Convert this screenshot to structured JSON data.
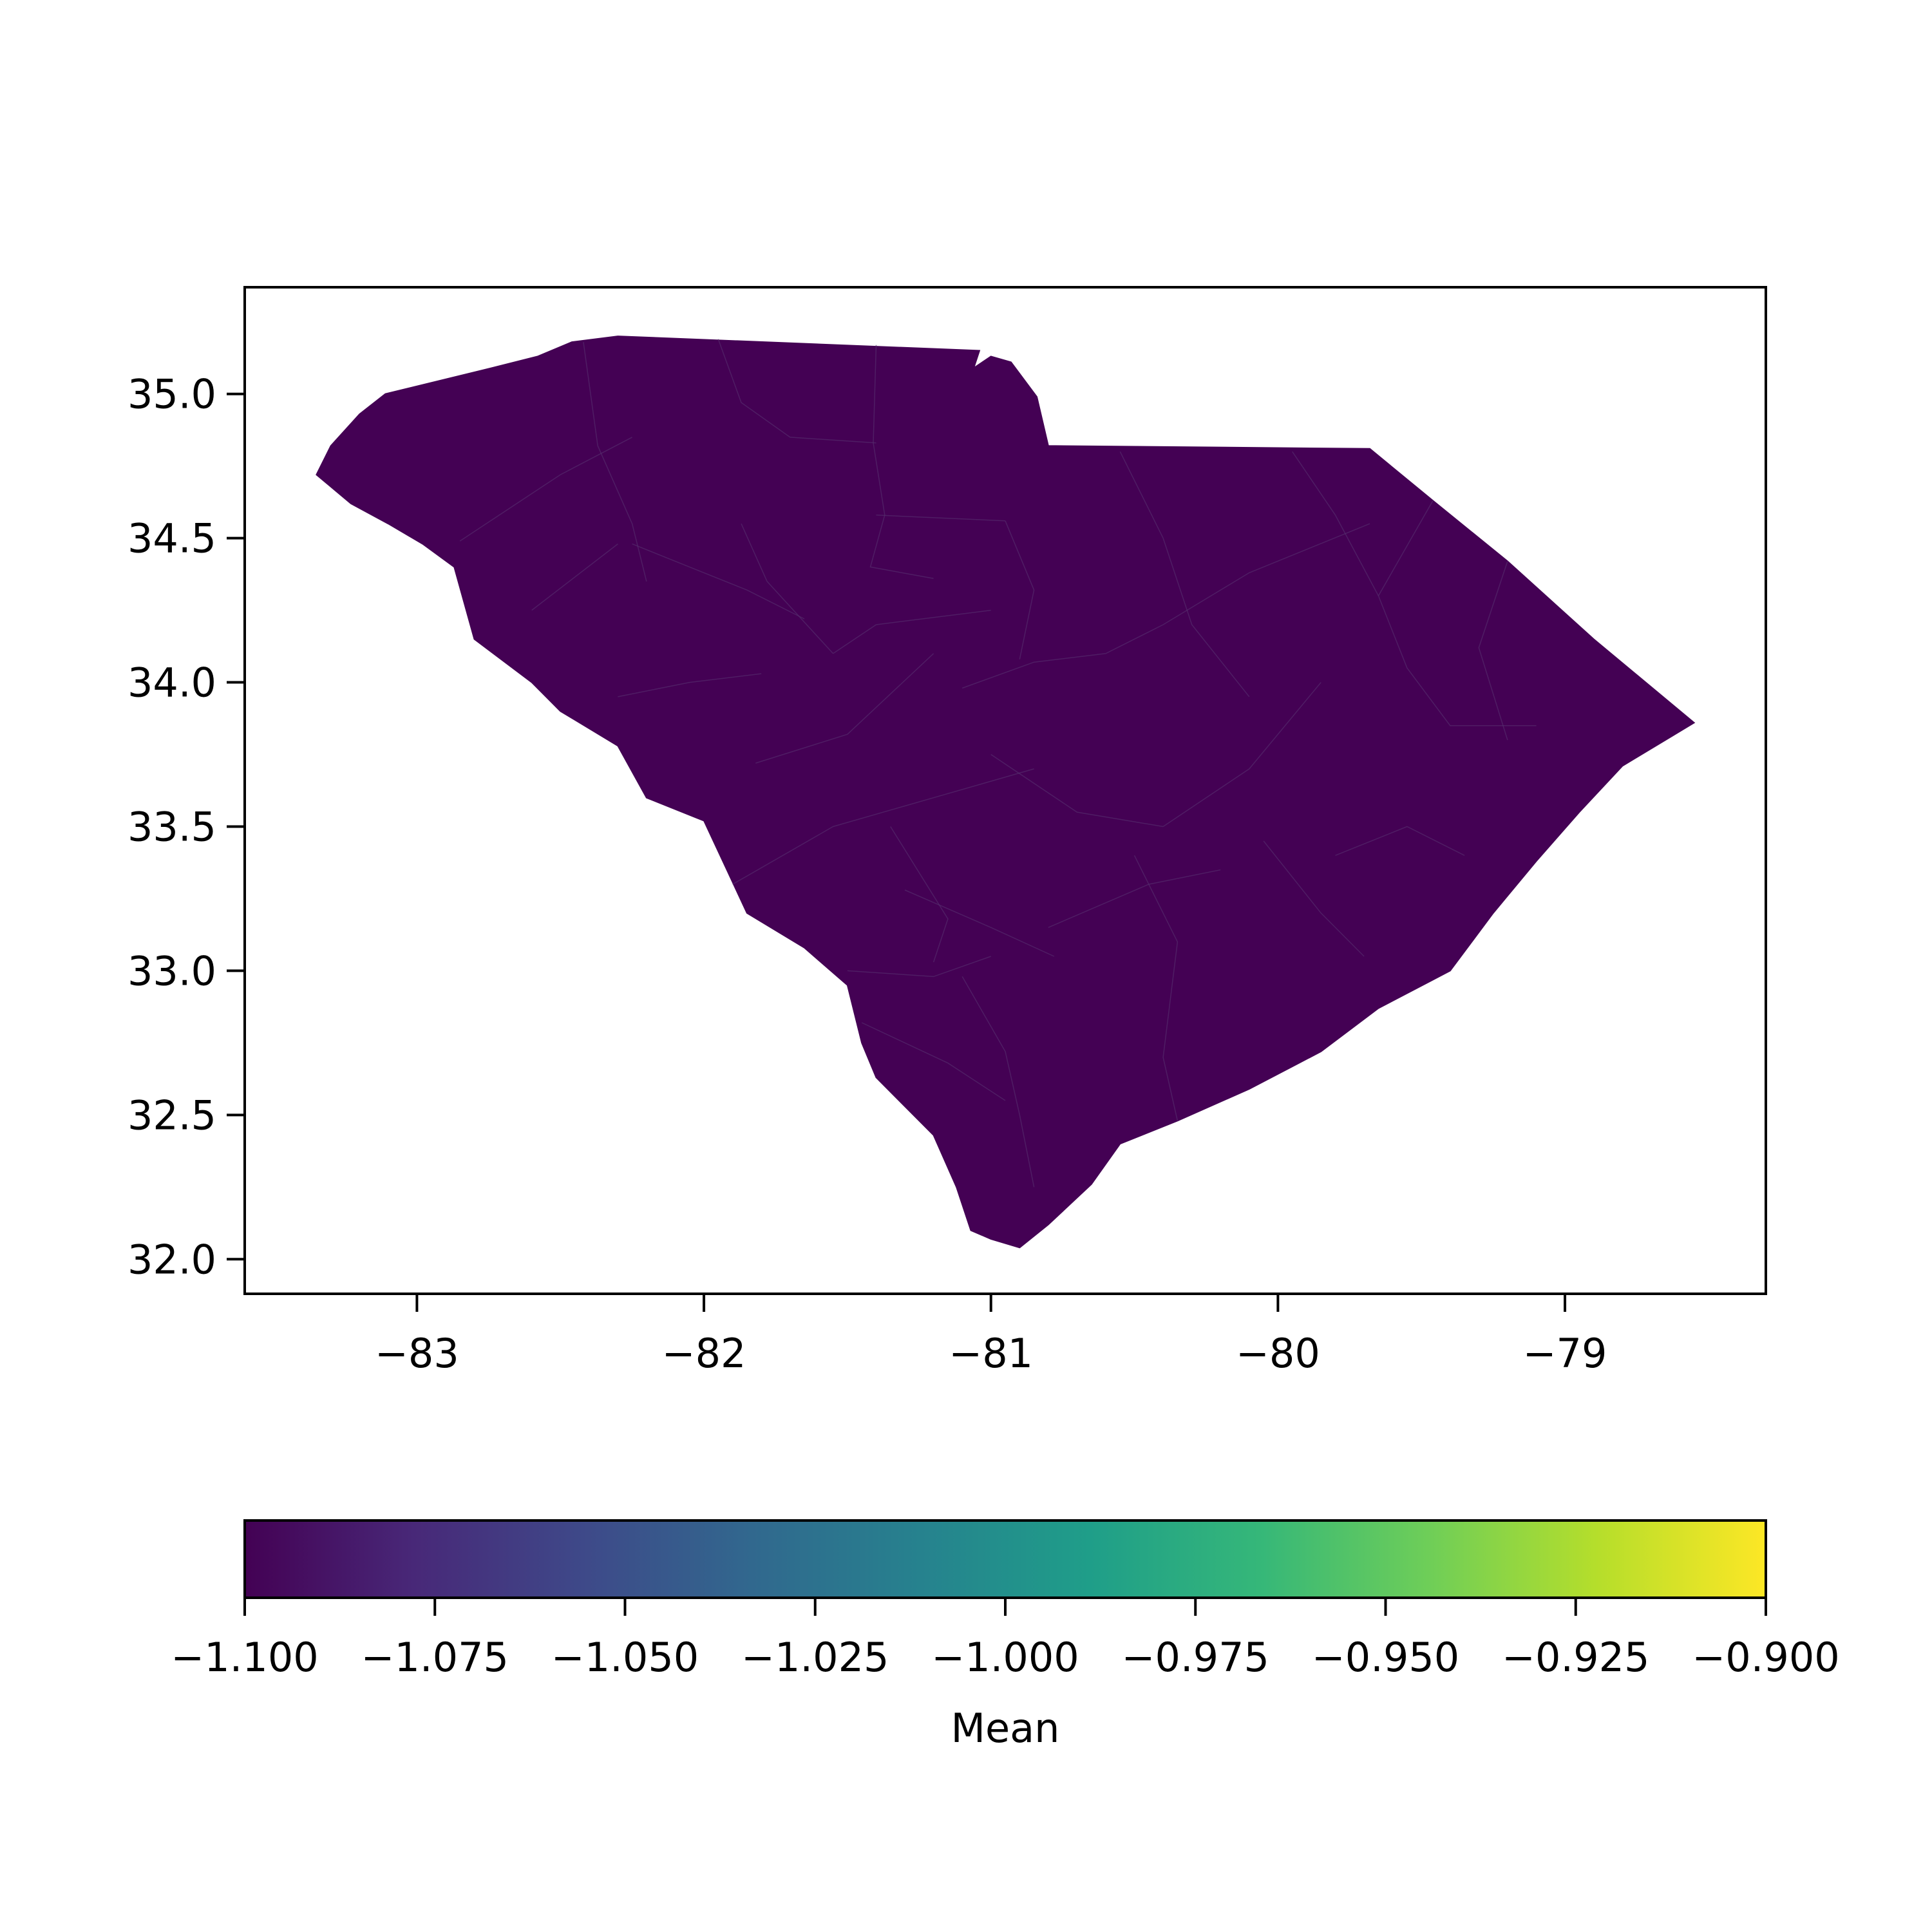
{
  "chart_data": {
    "type": "choropleth",
    "region": "South Carolina counties",
    "title": "",
    "xlabel": "",
    "ylabel": "",
    "xlim": [
      -83.6,
      -78.3
    ],
    "ylim": [
      31.88,
      35.37
    ],
    "x_ticks": [
      {
        "value": -83,
        "label": "−83"
      },
      {
        "value": -82,
        "label": "−82"
      },
      {
        "value": -81,
        "label": "−81"
      },
      {
        "value": -80,
        "label": "−80"
      },
      {
        "value": -79,
        "label": "−79"
      }
    ],
    "y_ticks": [
      {
        "value": 32.0,
        "label": "32.0"
      },
      {
        "value": 32.5,
        "label": "32.5"
      },
      {
        "value": 33.0,
        "label": "33.0"
      },
      {
        "value": 33.5,
        "label": "33.5"
      },
      {
        "value": 34.0,
        "label": "34.0"
      },
      {
        "value": 34.5,
        "label": "34.5"
      },
      {
        "value": 35.0,
        "label": "35.0"
      }
    ],
    "fill_value": -1.1,
    "fill_color": "#440154",
    "colorbar": {
      "label": "Mean",
      "orientation": "horizontal",
      "range": [
        -1.1,
        -0.9
      ],
      "colormap": "viridis",
      "ticks": [
        {
          "value": -1.1,
          "label": "−1.100"
        },
        {
          "value": -1.075,
          "label": "−1.075"
        },
        {
          "value": -1.05,
          "label": "−1.050"
        },
        {
          "value": -1.025,
          "label": "−1.025"
        },
        {
          "value": -1.0,
          "label": "−1.000"
        },
        {
          "value": -0.975,
          "label": "−0.975"
        },
        {
          "value": -0.95,
          "label": "−0.950"
        },
        {
          "value": -0.925,
          "label": "−0.925"
        },
        {
          "value": -0.9,
          "label": "−0.900"
        }
      ],
      "stops": [
        "#440154",
        "#482878",
        "#3e4989",
        "#31688e",
        "#26828e",
        "#1f9e89",
        "#35b779",
        "#6ece58",
        "#b5de2b",
        "#fde725"
      ]
    },
    "boundary": [
      [
        -83.35,
        34.72
      ],
      [
        -83.3,
        34.82
      ],
      [
        -83.2,
        34.93
      ],
      [
        -83.11,
        35.0
      ],
      [
        -82.78,
        35.08
      ],
      [
        -82.58,
        35.13
      ],
      [
        -82.46,
        35.18
      ],
      [
        -82.3,
        35.2
      ],
      [
        -81.04,
        35.15
      ],
      [
        -81.06,
        35.09
      ],
      [
        -81.0,
        35.13
      ],
      [
        -80.93,
        35.11
      ],
      [
        -80.84,
        34.99
      ],
      [
        -80.8,
        34.82
      ],
      [
        -79.68,
        34.81
      ],
      [
        -79.46,
        34.63
      ],
      [
        -79.2,
        34.42
      ],
      [
        -78.9,
        34.15
      ],
      [
        -78.55,
        33.86
      ],
      [
        -78.8,
        33.71
      ],
      [
        -78.95,
        33.55
      ],
      [
        -79.1,
        33.38
      ],
      [
        -79.25,
        33.2
      ],
      [
        -79.4,
        33.0
      ],
      [
        -79.65,
        32.87
      ],
      [
        -79.85,
        32.72
      ],
      [
        -80.1,
        32.59
      ],
      [
        -80.35,
        32.48
      ],
      [
        -80.55,
        32.4
      ],
      [
        -80.65,
        32.26
      ],
      [
        -80.8,
        32.12
      ],
      [
        -80.9,
        32.04
      ],
      [
        -81.0,
        32.07
      ],
      [
        -81.07,
        32.1
      ],
      [
        -81.12,
        32.25
      ],
      [
        -81.2,
        32.43
      ],
      [
        -81.4,
        32.63
      ],
      [
        -81.45,
        32.75
      ],
      [
        -81.5,
        32.95
      ],
      [
        -81.65,
        33.08
      ],
      [
        -81.85,
        33.2
      ],
      [
        -81.92,
        33.35
      ],
      [
        -82.0,
        33.52
      ],
      [
        -82.2,
        33.6
      ],
      [
        -82.3,
        33.78
      ],
      [
        -82.5,
        33.9
      ],
      [
        -82.6,
        34.0
      ],
      [
        -82.8,
        34.15
      ],
      [
        -82.87,
        34.4
      ],
      [
        -82.98,
        34.48
      ],
      [
        -83.1,
        34.55
      ],
      [
        -83.23,
        34.62
      ],
      [
        -83.35,
        34.72
      ]
    ],
    "county_lines": [
      [
        [
          -82.85,
          34.49
        ],
        [
          -82.5,
          34.72
        ],
        [
          -82.25,
          34.85
        ]
      ],
      [
        [
          -82.42,
          35.18
        ],
        [
          -82.37,
          34.82
        ],
        [
          -82.25,
          34.55
        ],
        [
          -82.2,
          34.35
        ]
      ],
      [
        [
          -82.25,
          34.48
        ],
        [
          -82.0,
          34.38
        ],
        [
          -81.85,
          34.32
        ],
        [
          -81.65,
          34.22
        ]
      ],
      [
        [
          -82.6,
          34.25
        ],
        [
          -82.3,
          34.48
        ]
      ],
      [
        [
          -81.95,
          35.19
        ],
        [
          -81.87,
          34.97
        ],
        [
          -81.7,
          34.85
        ],
        [
          -81.4,
          34.83
        ]
      ],
      [
        [
          -81.4,
          35.17
        ],
        [
          -81.41,
          34.83
        ],
        [
          -81.37,
          34.58
        ],
        [
          -81.42,
          34.4
        ],
        [
          -81.2,
          34.36
        ]
      ],
      [
        [
          -81.4,
          34.58
        ],
        [
          -80.95,
          34.56
        ]
      ],
      [
        [
          -81.87,
          34.55
        ],
        [
          -81.78,
          34.35
        ],
        [
          -81.55,
          34.1
        ]
      ],
      [
        [
          -82.3,
          33.95
        ],
        [
          -82.05,
          34.0
        ],
        [
          -81.8,
          34.03
        ]
      ],
      [
        [
          -81.82,
          33.72
        ],
        [
          -81.5,
          33.82
        ],
        [
          -81.2,
          34.1
        ]
      ],
      [
        [
          -81.55,
          34.1
        ],
        [
          -81.4,
          34.2
        ],
        [
          -81.0,
          34.25
        ]
      ],
      [
        [
          -80.95,
          34.56
        ],
        [
          -80.85,
          34.32
        ],
        [
          -80.9,
          34.08
        ]
      ],
      [
        [
          -81.1,
          33.98
        ],
        [
          -80.85,
          34.07
        ],
        [
          -80.6,
          34.1
        ],
        [
          -80.4,
          34.2
        ],
        [
          -80.1,
          34.38
        ],
        [
          -79.68,
          34.55
        ]
      ],
      [
        [
          -80.55,
          34.8
        ],
        [
          -80.4,
          34.5
        ],
        [
          -80.3,
          34.2
        ],
        [
          -80.1,
          33.95
        ]
      ],
      [
        [
          -79.95,
          34.8
        ],
        [
          -79.8,
          34.58
        ],
        [
          -79.65,
          34.3
        ]
      ],
      [
        [
          -79.46,
          34.63
        ],
        [
          -79.65,
          34.3
        ],
        [
          -79.55,
          34.05
        ],
        [
          -79.4,
          33.85
        ],
        [
          -79.1,
          33.85
        ]
      ],
      [
        [
          -79.2,
          34.42
        ],
        [
          -79.3,
          34.12
        ],
        [
          -79.2,
          33.8
        ]
      ],
      [
        [
          -80.4,
          33.5
        ],
        [
          -80.1,
          33.7
        ],
        [
          -79.85,
          34.0
        ]
      ],
      [
        [
          -81.0,
          33.75
        ],
        [
          -80.7,
          33.55
        ],
        [
          -80.4,
          33.5
        ]
      ],
      [
        [
          -81.9,
          33.3
        ],
        [
          -81.55,
          33.5
        ],
        [
          -81.2,
          33.6
        ],
        [
          -80.85,
          33.7
        ]
      ],
      [
        [
          -81.3,
          33.28
        ],
        [
          -81.0,
          33.15
        ],
        [
          -80.78,
          33.05
        ]
      ],
      [
        [
          -81.35,
          33.5
        ],
        [
          -81.15,
          33.18
        ],
        [
          -81.2,
          33.03
        ]
      ],
      [
        [
          -80.8,
          33.15
        ],
        [
          -80.45,
          33.3
        ],
        [
          -80.2,
          33.35
        ]
      ],
      [
        [
          -80.5,
          33.4
        ],
        [
          -80.35,
          33.1
        ],
        [
          -80.4,
          32.7
        ],
        [
          -80.35,
          32.48
        ]
      ],
      [
        [
          -80.05,
          33.45
        ],
        [
          -79.85,
          33.2
        ],
        [
          -79.7,
          33.05
        ]
      ],
      [
        [
          -79.35,
          33.4
        ],
        [
          -79.55,
          33.5
        ],
        [
          -79.8,
          33.4
        ]
      ],
      [
        [
          -81.1,
          32.98
        ],
        [
          -80.95,
          32.72
        ],
        [
          -80.9,
          32.5
        ],
        [
          -80.85,
          32.25
        ]
      ],
      [
        [
          -81.45,
          32.82
        ],
        [
          -81.15,
          32.68
        ],
        [
          -80.95,
          32.55
        ]
      ],
      [
        [
          -81.5,
          33.0
        ],
        [
          -81.2,
          32.98
        ],
        [
          -81.0,
          33.05
        ]
      ]
    ]
  }
}
